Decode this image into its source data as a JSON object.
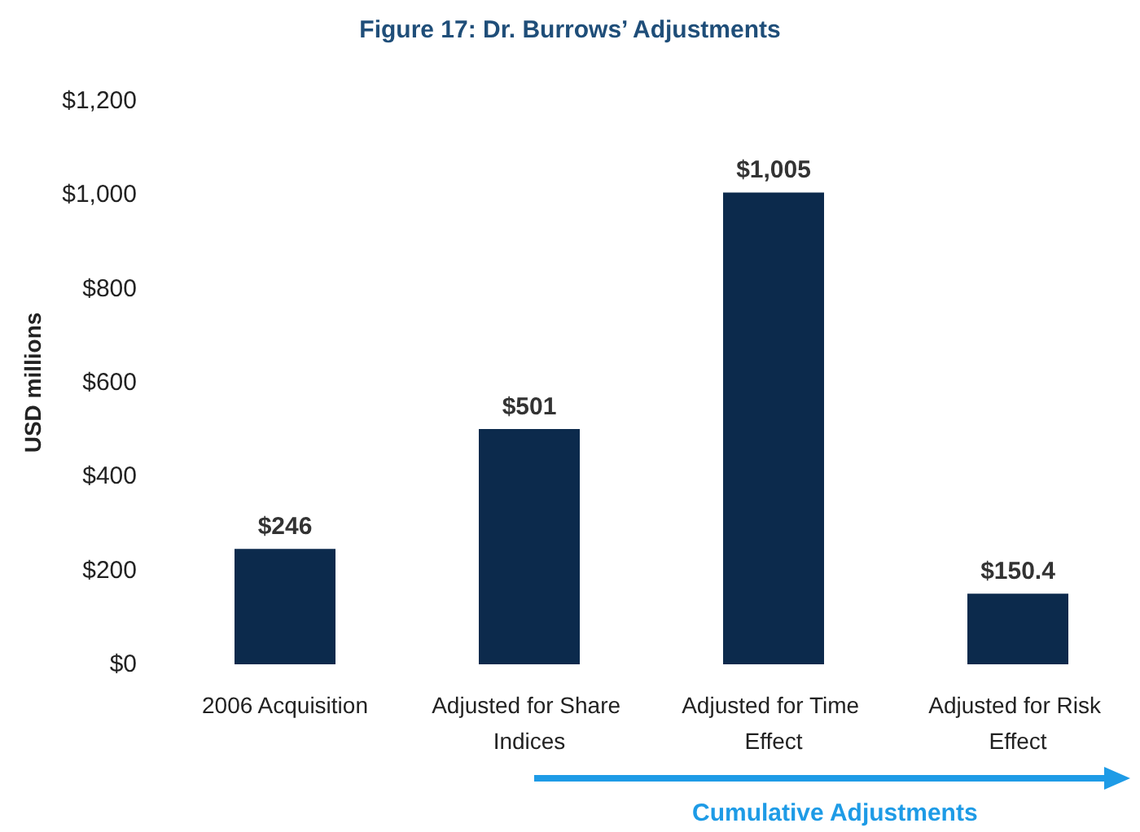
{
  "chart_data": {
    "type": "bar",
    "title": "Figure 17: Dr. Burrows’ Adjustments",
    "ylabel": "USD millions",
    "categories": [
      "2006 Acquisition",
      "Adjusted for Share Indices",
      "Adjusted for Time Effect",
      "Adjusted for Risk Effect"
    ],
    "values": [
      246,
      501,
      1005,
      150.4
    ],
    "color": "#0c2a4c",
    "value_labels": [
      "$246",
      "$501",
      "$1,005",
      "$150.4"
    ],
    "ylim": [
      0,
      1200
    ],
    "yticks": [
      {
        "value": 0,
        "label": "$0"
      },
      {
        "value": 200,
        "label": "$200"
      },
      {
        "value": 400,
        "label": "$400"
      },
      {
        "value": 600,
        "label": "$600"
      },
      {
        "value": 800,
        "label": "$800"
      },
      {
        "value": 1000,
        "label": "$1,000"
      },
      {
        "value": 1200,
        "label": "$1,200"
      }
    ],
    "grid": false,
    "annotations": [
      "Cumulative Adjustments"
    ]
  }
}
